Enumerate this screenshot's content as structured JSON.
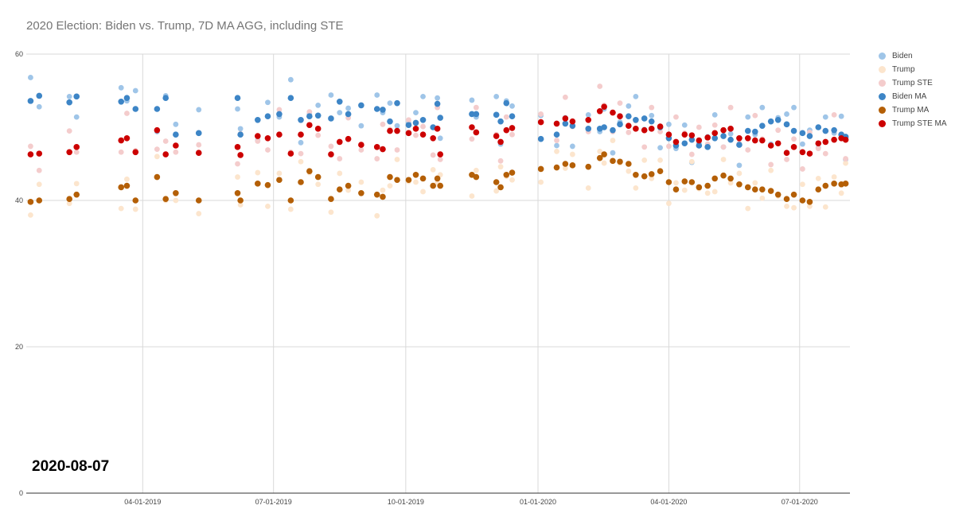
{
  "chart_data": {
    "type": "scatter",
    "title": "2020 Election: Biden vs. Trump, 7D MA AGG, including STE",
    "annotation": "2020-08-07",
    "xlabel": "",
    "ylabel": "",
    "xlim": [
      "2019-01-10",
      "2020-08-05"
    ],
    "ylim": [
      0,
      60
    ],
    "yticks": [
      0,
      20,
      40,
      60
    ],
    "xticks": [
      {
        "date": "2019-04-01",
        "label": "04-01-2019"
      },
      {
        "date": "2019-07-01",
        "label": "07-01-2019"
      },
      {
        "date": "2019-10-01",
        "label": "10-01-2019"
      },
      {
        "date": "2020-01-01",
        "label": "01-01-2020"
      },
      {
        "date": "2020-04-01",
        "label": "04-01-2020"
      },
      {
        "date": "2020-07-01",
        "label": "07-01-2020"
      }
    ],
    "grid": true,
    "legend_position": "right",
    "x": [
      "2019-01-13",
      "2019-01-19",
      "2019-02-09",
      "2019-02-14",
      "2019-03-17",
      "2019-03-21",
      "2019-03-27",
      "2019-04-11",
      "2019-04-17",
      "2019-04-24",
      "2019-05-10",
      "2019-06-06",
      "2019-06-08",
      "2019-06-20",
      "2019-06-27",
      "2019-07-05",
      "2019-07-13",
      "2019-07-20",
      "2019-07-26",
      "2019-08-01",
      "2019-08-10",
      "2019-08-16",
      "2019-08-22",
      "2019-08-31",
      "2019-09-11",
      "2019-09-15",
      "2019-09-20",
      "2019-09-25",
      "2019-10-03",
      "2019-10-08",
      "2019-10-13",
      "2019-10-20",
      "2019-10-23",
      "2019-10-25",
      "2019-11-16",
      "2019-11-19",
      "2019-12-03",
      "2019-12-06",
      "2019-12-10",
      "2019-12-14",
      "2020-01-03",
      "2020-01-14",
      "2020-01-20",
      "2020-01-25",
      "2020-02-05",
      "2020-02-13",
      "2020-02-16",
      "2020-02-22",
      "2020-02-27",
      "2020-03-04",
      "2020-03-09",
      "2020-03-15",
      "2020-03-20",
      "2020-03-26",
      "2020-04-01",
      "2020-04-06",
      "2020-04-12",
      "2020-04-17",
      "2020-04-22",
      "2020-04-28",
      "2020-05-03",
      "2020-05-09",
      "2020-05-14",
      "2020-05-20",
      "2020-05-26",
      "2020-05-31",
      "2020-06-05",
      "2020-06-11",
      "2020-06-16",
      "2020-06-22",
      "2020-06-27",
      "2020-07-03",
      "2020-07-08",
      "2020-07-14",
      "2020-07-19",
      "2020-07-25",
      "2020-07-30",
      "2020-08-02"
    ],
    "series": [
      {
        "name": "Biden",
        "color": "#9fc5e8",
        "radius": "small",
        "values": [
          56.8,
          52.8,
          54.2,
          51.4,
          55.4,
          53.6,
          55,
          49.4,
          54.3,
          50.4,
          52.4,
          52.5,
          49.8,
          48.2,
          53.4,
          51.4,
          56.5,
          47.9,
          51.8,
          53,
          54.4,
          52,
          52.6,
          50.2,
          54.4,
          52,
          53.3,
          50.2,
          50.6,
          52,
          54.2,
          48.5,
          54,
          48.5,
          53.7,
          51.4,
          54.2,
          47.7,
          53.6,
          52.9,
          51.6,
          47.5,
          51.3,
          47.4,
          51.7,
          49.4,
          52.5,
          46.5,
          50.7,
          52.9,
          54.2,
          49.7,
          51.6,
          47.2,
          50.4,
          47.1,
          50.3,
          45.2,
          47.8,
          48.7,
          51.7,
          47.3,
          49.1,
          44.8,
          51.4,
          49,
          52.7,
          47.7,
          51.3,
          51.8,
          52.7,
          47.7,
          49.6,
          47.2,
          51.4,
          49.2,
          51.5,
          45.6
        ]
      },
      {
        "name": "Trump",
        "color": "#fce5cd",
        "radius": "small",
        "values": [
          38,
          42.2,
          39.6,
          42.3,
          38.9,
          42.9,
          38.8,
          46,
          40,
          40,
          38.2,
          43.2,
          39.4,
          43.8,
          39.2,
          43.7,
          38.8,
          45.3,
          43.8,
          42.2,
          38.4,
          43.7,
          41.4,
          42.5,
          37.9,
          41.4,
          42,
          45.6,
          42.6,
          42.5,
          41.2,
          44.2,
          42.4,
          43.5,
          40.6,
          44.1,
          41.3,
          44.6,
          43.3,
          42.8,
          42.5,
          46.7,
          44.4,
          46.3,
          41.7,
          46.7,
          45.1,
          48.2,
          45.1,
          44,
          41.7,
          45.5,
          43,
          45.5,
          39.6,
          42.4,
          41.4,
          45.3,
          41.6,
          41,
          41.2,
          45.6,
          42.4,
          43.7,
          38.9,
          42.4,
          40.3,
          44.1,
          40.6,
          39.2,
          39,
          42.2,
          39.2,
          43,
          39.1,
          43.2,
          41,
          45.1
        ]
      },
      {
        "name": "Trump STE",
        "color": "#f4cccc",
        "radius": "small",
        "values": [
          47.4,
          44.1,
          49.5,
          46.6,
          46.6,
          51.9,
          46.8,
          47,
          48.1,
          46.6,
          47.6,
          45,
          49.1,
          48.1,
          46.9,
          52.4,
          46.6,
          46.4,
          52.1,
          48.9,
          47.4,
          45.7,
          51.3,
          46.9,
          45.7,
          50.4,
          49.7,
          46.9,
          51,
          48.9,
          50.1,
          46.2,
          52.7,
          45.6,
          48.4,
          52.7,
          49,
          45.4,
          51.4,
          49,
          51.8,
          48.2,
          54.1,
          50.1,
          49.4,
          55.6,
          53,
          49.4,
          53.3,
          49.3,
          50.9,
          47.3,
          52.7,
          49.4,
          47.4,
          51.4,
          49.2,
          46.3,
          50,
          47.7,
          50.3,
          47.3,
          52.7,
          47.8,
          46.9,
          51.6,
          48.4,
          44.9,
          49.6,
          45.6,
          48.4,
          44.3,
          49.3,
          47.1,
          46.4,
          51.7,
          48.7,
          45.7
        ]
      },
      {
        "name": "Biden MA",
        "color": "#3d85c6",
        "radius": "large",
        "values": [
          53.6,
          54.3,
          53.4,
          54.2,
          53.5,
          54,
          52.5,
          52.5,
          54,
          49,
          49.2,
          54,
          49,
          51,
          51.5,
          51.8,
          54,
          51,
          51.5,
          51.6,
          51.2,
          53.5,
          51.8,
          53,
          52.5,
          52.4,
          50.8,
          53.3,
          50.3,
          50.6,
          51,
          50,
          53.2,
          51.3,
          51.8,
          51.8,
          51.7,
          50.8,
          53.3,
          51.5,
          48.4,
          49,
          50.5,
          50.2,
          49.8,
          49.8,
          50,
          49.6,
          50.4,
          51.5,
          51,
          51.2,
          50.8,
          50,
          48.5,
          47.5,
          47.8,
          48.3,
          47.5,
          47.3,
          48.5,
          48.8,
          48.3,
          47.6,
          49.5,
          49.4,
          50.2,
          50.8,
          51,
          50.4,
          49.5,
          49.2,
          48.8,
          50,
          49.5,
          49.6,
          49,
          48.7
        ]
      },
      {
        "name": "Trump MA",
        "color": "#b45f06",
        "radius": "large",
        "values": [
          39.8,
          40,
          40.2,
          40.8,
          41.8,
          42,
          40,
          43.2,
          40.2,
          41,
          40,
          41,
          40,
          42.3,
          42.1,
          42.8,
          40,
          42.5,
          44,
          43.2,
          40.2,
          41.5,
          42,
          41,
          40.8,
          40.5,
          43.2,
          42.8,
          42.8,
          43.5,
          43,
          42,
          43,
          42,
          43.5,
          43.2,
          42.5,
          41.8,
          43.5,
          43.8,
          44.3,
          44.5,
          45,
          44.8,
          44.6,
          45.8,
          46.3,
          45.4,
          45.3,
          45,
          43.5,
          43.3,
          43.6,
          44,
          42.5,
          41.5,
          42.6,
          42.5,
          41.8,
          42,
          43,
          43.4,
          43,
          42.2,
          41.8,
          41.5,
          41.5,
          41.3,
          40.8,
          40.2,
          40.8,
          40,
          39.8,
          41.5,
          42,
          42.3,
          42.2,
          42.3
        ]
      },
      {
        "name": "Trump STE MA",
        "color": "#cc0000",
        "radius": "large",
        "values": [
          46.3,
          46.4,
          46.6,
          47.3,
          48.2,
          48.5,
          46.6,
          49.6,
          46.3,
          47.5,
          46.5,
          47.3,
          46.2,
          48.8,
          48.5,
          49,
          46.4,
          49,
          50.3,
          49.8,
          46.3,
          48,
          48.4,
          47.6,
          47.3,
          47,
          49.5,
          49.5,
          49.2,
          49.8,
          49,
          48.5,
          49.8,
          46.3,
          50,
          49.3,
          48.8,
          48,
          49.6,
          49.9,
          50.7,
          50.5,
          51.2,
          50.8,
          51,
          52.2,
          52.8,
          52,
          51.5,
          50.2,
          49.8,
          49.6,
          49.8,
          50.1,
          49,
          48,
          49,
          48.9,
          48.2,
          48.6,
          49.2,
          49.6,
          49.8,
          48.5,
          48.5,
          48.2,
          48.2,
          47.5,
          47.8,
          46.5,
          47.3,
          46.6,
          46.4,
          47.8,
          48,
          48.3,
          48.5,
          48.3
        ]
      }
    ]
  }
}
